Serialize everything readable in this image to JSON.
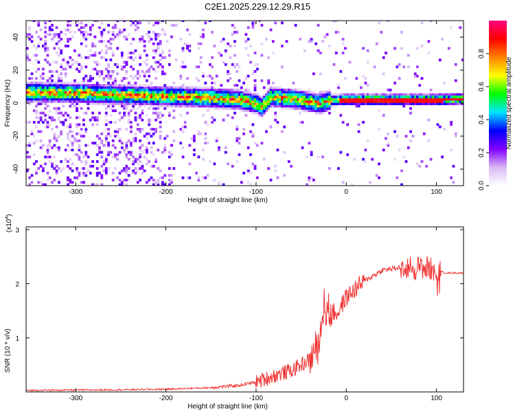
{
  "title": "C2E1.2025.229.12.29.R15",
  "chart_data": [
    {
      "type": "heatmap",
      "title": "",
      "xlabel": "Height of straight line (km)",
      "ylabel": "Frequency (Hz)",
      "xlim": [
        -355,
        130
      ],
      "ylim": [
        -50,
        50
      ],
      "xticks": [
        -300,
        -200,
        -100,
        0,
        100
      ],
      "yticks": [
        -40,
        -20,
        0,
        20,
        40
      ],
      "colorbar": {
        "label": "Normalized spectral amplitude",
        "ticks": [
          "0.0",
          "0.2",
          "0.4",
          "0.6",
          "0.8"
        ],
        "tick_values": [
          0.0,
          0.2,
          0.4,
          0.6,
          0.8
        ],
        "range": [
          0,
          1
        ],
        "colormap": [
          "#ffffff",
          "#d9b8f5",
          "#8000ff",
          "#0000ff",
          "#00e5ff",
          "#00ff00",
          "#ffff00",
          "#ff8000",
          "#ff0000",
          "#ff0080"
        ]
      },
      "ridge": {
        "x": [
          -355,
          -300,
          -250,
          -200,
          -150,
          -120,
          -100,
          -95,
          -85,
          -60,
          -40,
          -30,
          -20,
          0,
          50,
          100,
          130
        ],
        "y": [
          6,
          5.5,
          4.5,
          3.5,
          2.5,
          1.5,
          -1,
          -3,
          3,
          2,
          0,
          -1,
          1,
          1.5,
          1.5,
          1.5,
          2
        ]
      },
      "grid": false
    },
    {
      "type": "line",
      "title": "",
      "xlabel": "Height of straight line (km)",
      "ylabel": "SNR (10 * v/v)",
      "scale_label_base": "(x10",
      "scale_label_exp": "4",
      "scale_label_close": ")",
      "xlim": [
        -355,
        130
      ],
      "ylim": [
        0,
        3.05
      ],
      "xticks": [
        -300,
        -200,
        -100,
        0,
        100
      ],
      "yticks": [
        1,
        2,
        3
      ],
      "series": [
        {
          "color": "#f03030",
          "envelope": {
            "x": [
              -355,
              -250,
              -200,
              -150,
              -120,
              -100,
              -80,
              -60,
              -40,
              -30,
              -25,
              -20,
              -10,
              0,
              20,
              40,
              60,
              80,
              90,
              100,
              110,
              130
            ],
            "y": [
              0.03,
              0.04,
              0.05,
              0.08,
              0.12,
              0.18,
              0.3,
              0.4,
              0.6,
              0.9,
              1.6,
              1.5,
              1.45,
              1.75,
              2.05,
              2.25,
              2.3,
              2.3,
              2.3,
              2.25,
              2.2,
              2.2
            ]
          }
        }
      ],
      "grid": false
    }
  ]
}
